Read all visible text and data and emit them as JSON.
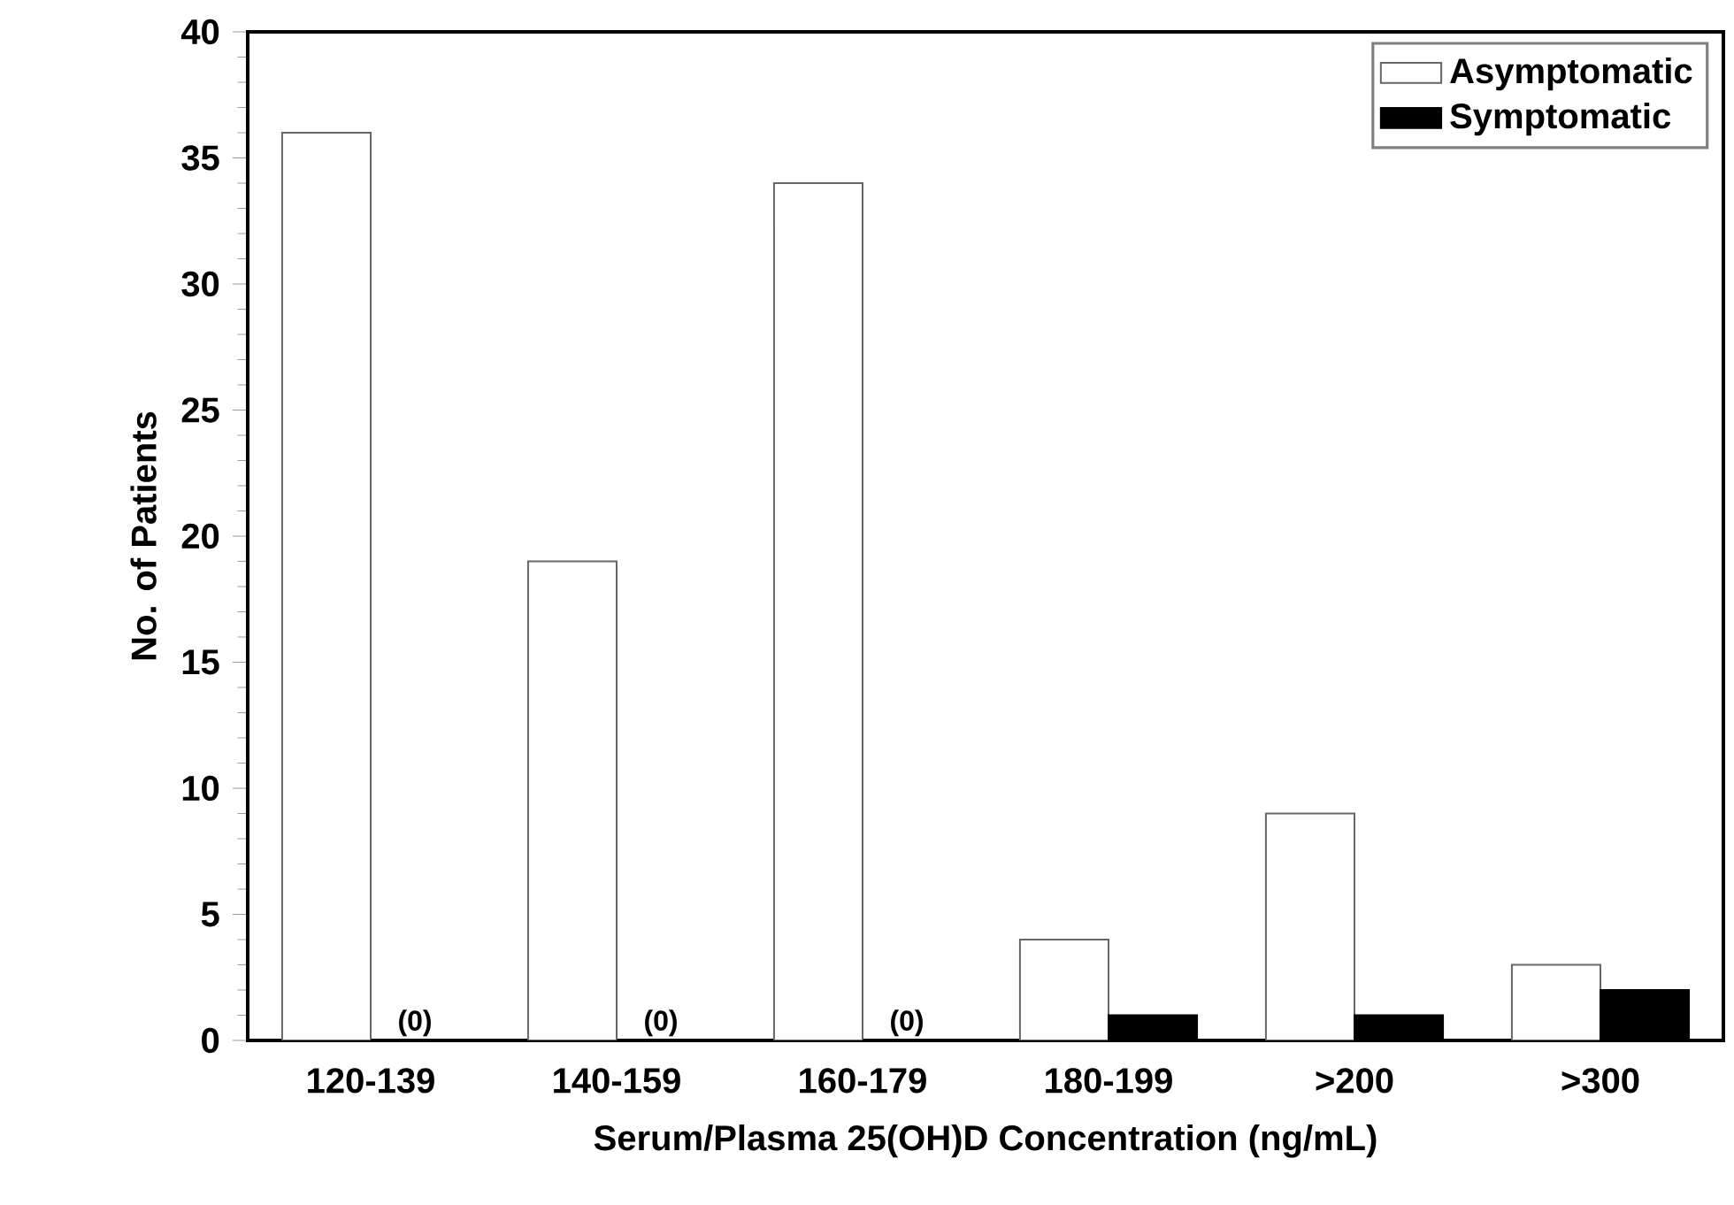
{
  "chart_data": {
    "type": "bar",
    "xlabel": "Serum/Plasma 25(OH)D Concentration (ng/mL)",
    "ylabel": "No. of Patients",
    "categories": [
      "120-139",
      "140-159",
      "160-179",
      "180-199",
      ">200",
      ">300"
    ],
    "series": [
      {
        "name": "Asymptomatic",
        "color": "#ffffff",
        "values": [
          36,
          19,
          34,
          4,
          9,
          3
        ]
      },
      {
        "name": "Symptomatic",
        "color": "#000000",
        "values": [
          0,
          0,
          0,
          1,
          1,
          2
        ],
        "value_labels": [
          "(0)",
          "(0)",
          "(0)",
          null,
          null,
          null
        ]
      }
    ],
    "ylim": [
      0,
      40
    ],
    "yticks": [
      0,
      5,
      10,
      15,
      20,
      25,
      30,
      35,
      40
    ],
    "legend": "top right",
    "grid": false
  }
}
